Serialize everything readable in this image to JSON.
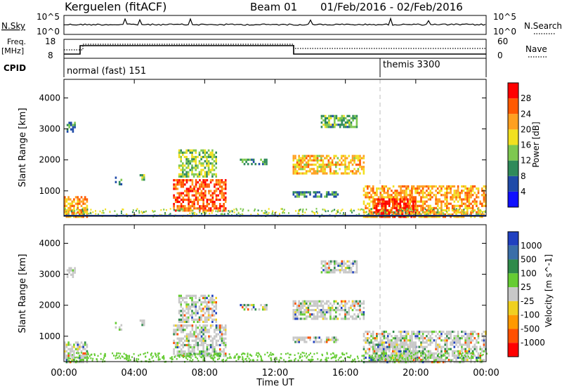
{
  "header": {
    "station": "Kerguelen (fitACF)",
    "beam": "Beam 01",
    "date_range": "01/Feb/2016 - 02/Feb/2016"
  },
  "status_panels": {
    "nsky_label": "N.Sky",
    "nsky_ticks": [
      "10^5",
      "10^0"
    ],
    "nsearch_label": "N.Search",
    "nsearch_ticks": [
      "10^5",
      "10^0"
    ],
    "freq_label": "Freq.",
    "freq_unit": "[MHz]",
    "freq_ticks": [
      "18",
      "8"
    ],
    "nave_label": "Nave",
    "nave_ticks": [
      "60",
      "0"
    ],
    "cpid_label": "CPID",
    "cpid_entries": [
      {
        "name": "normal (fast) 151",
        "start": "00:00"
      },
      {
        "name": "themis 3300",
        "start": "18:00"
      }
    ]
  },
  "chart_data": [
    {
      "type": "heatmap",
      "panel": "power",
      "ylabel": "Slant Range [km]",
      "xlabel": "",
      "colorbar_label": "Power [dB]",
      "colorbar_ticks": [
        "4",
        "8",
        "12",
        "16",
        "20",
        "24",
        "28"
      ],
      "colorbar_colors": [
        "#1010ff",
        "#1f4aa8",
        "#2f8a5a",
        "#7ec850",
        "#f2e020",
        "#ffa020",
        "#ff5a00",
        "#ff0000"
      ],
      "ylim": [
        180,
        4600
      ],
      "yticks": [
        "1000",
        "2000",
        "3000",
        "4000"
      ],
      "xlim_hours": [
        0,
        24
      ],
      "echo_regions": [
        {
          "t0": 0.0,
          "t1": 1.3,
          "r0": 200,
          "r1": 900,
          "value_db": 20
        },
        {
          "t0": 0.15,
          "t1": 0.6,
          "r0": 2950,
          "r1": 3250,
          "value_db": 8
        },
        {
          "t0": 2.9,
          "t1": 3.3,
          "r0": 1250,
          "r1": 1500,
          "value_db": 8
        },
        {
          "t0": 4.3,
          "t1": 4.6,
          "r0": 1400,
          "r1": 1600,
          "value_db": 10
        },
        {
          "t0": 6.2,
          "t1": 9.2,
          "r0": 400,
          "r1": 1400,
          "value_db": 24
        },
        {
          "t0": 6.5,
          "t1": 8.7,
          "r0": 1500,
          "r1": 2400,
          "value_db": 12
        },
        {
          "t0": 10.0,
          "t1": 11.5,
          "r0": 1900,
          "r1": 2100,
          "value_db": 8
        },
        {
          "t0": 13.0,
          "t1": 17.0,
          "r0": 1600,
          "r1": 2200,
          "value_db": 18
        },
        {
          "t0": 14.6,
          "t1": 16.6,
          "r0": 3100,
          "r1": 3500,
          "value_db": 10
        },
        {
          "t0": 13.0,
          "t1": 15.6,
          "r0": 850,
          "r1": 1050,
          "value_db": 8
        },
        {
          "t0": 17.0,
          "t1": 24.0,
          "r0": 200,
          "r1": 1250,
          "value_db": 20
        },
        {
          "t0": 17.6,
          "t1": 20.0,
          "r0": 200,
          "r1": 800,
          "value_db": 28
        }
      ]
    },
    {
      "type": "heatmap",
      "panel": "velocity",
      "ylabel": "Slant Range [km]",
      "xlabel": "Time UT",
      "colorbar_label": "Velocity [m s^-1]",
      "colorbar_ticks": [
        "1000",
        "500",
        "100",
        "25",
        "-25",
        "-100",
        "-500",
        "-1000"
      ],
      "colorbar_colors": [
        "#2040c0",
        "#3a6ea8",
        "#2f8a4a",
        "#66cc33",
        "#c8c8c8",
        "#f0d020",
        "#ff9900",
        "#ff5000",
        "#ff0000"
      ],
      "ylim": [
        180,
        4600
      ],
      "yticks": [
        "1000",
        "2000",
        "3000",
        "4000"
      ],
      "xlim_hours": [
        0,
        24
      ],
      "xticks": [
        "00:00",
        "04:00",
        "08:00",
        "12:00",
        "16:00",
        "20:00",
        "00:00"
      ]
    }
  ],
  "colors": {
    "ground_scatter": "#c8c8c8",
    "dashed_marker": "#bbbbbb"
  }
}
